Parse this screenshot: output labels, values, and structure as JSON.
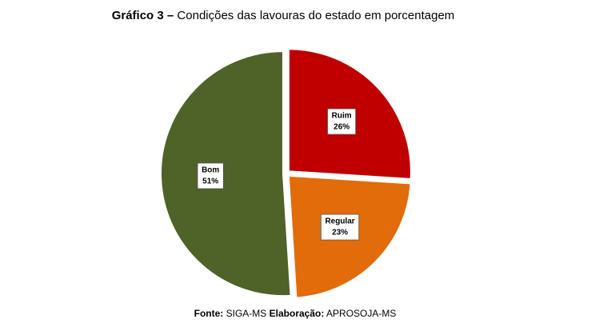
{
  "chart_data": {
    "type": "pie",
    "title_label": "Gráfico 3 –",
    "title": "Condições das lavouras do estado em porcentagem",
    "categories": [
      "Ruim",
      "Regular",
      "Bom"
    ],
    "values": [
      26,
      23,
      51
    ],
    "value_labels": [
      "26%",
      "23%",
      "51%"
    ],
    "colors": [
      "#c00000",
      "#e26b0a",
      "#4f6228"
    ],
    "source_label": "Fonte:",
    "source": "SIGA-MS",
    "author_label": "Elaboração:",
    "author": "APROSOJA-MS"
  }
}
